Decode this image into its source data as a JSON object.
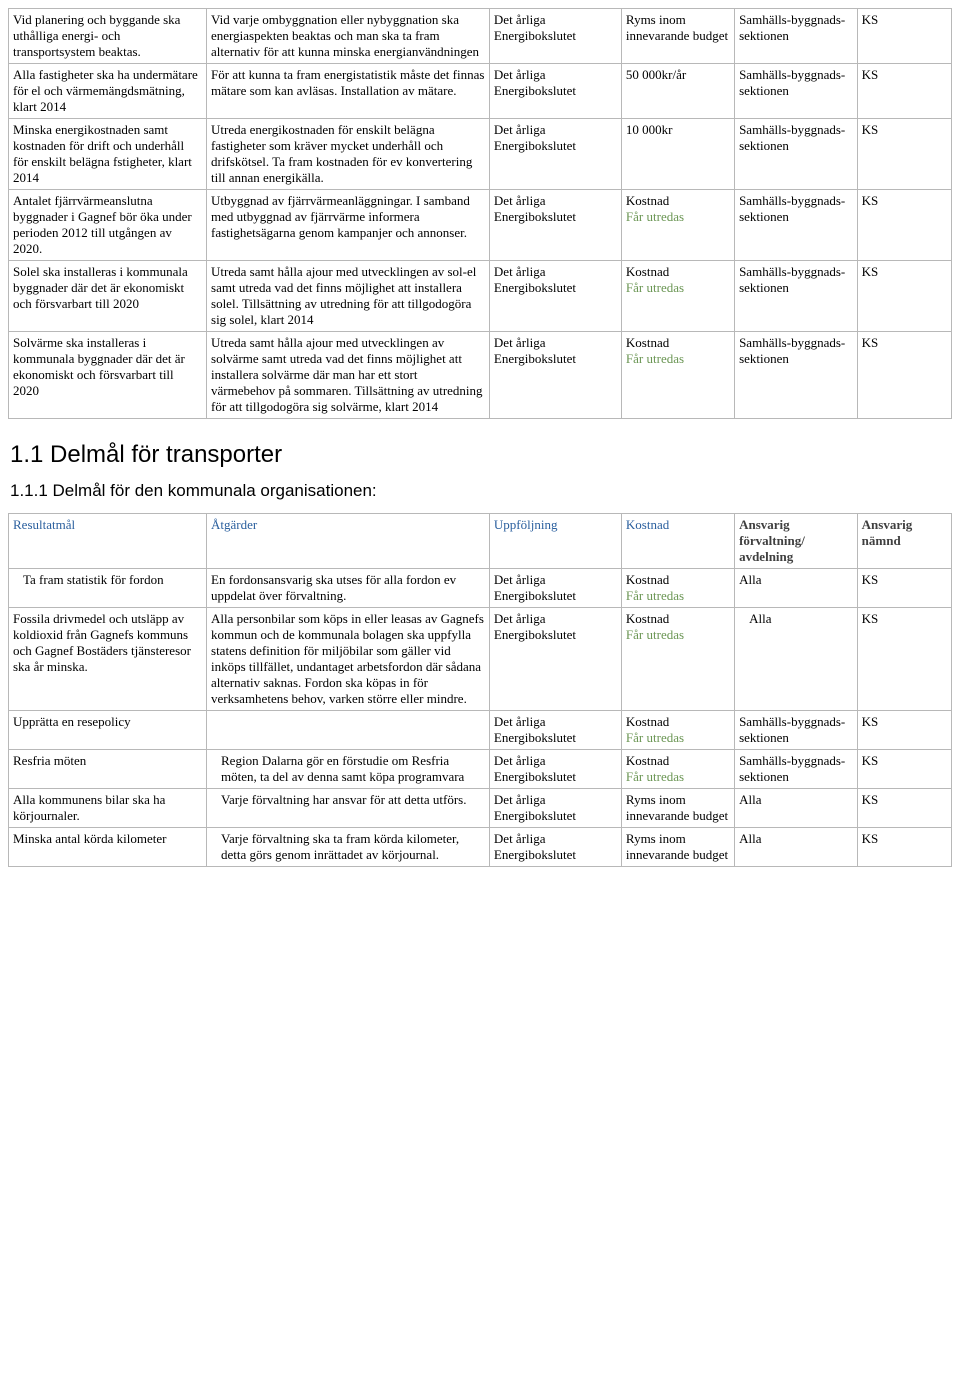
{
  "tables": {
    "energy": {
      "rows": [
        {
          "c1": "Vid planering och byggande ska uthålliga energi- och transportsystem beaktas.",
          "c2": "Vid varje ombyggnation eller nybyggnation ska energiaspekten beaktas och man ska ta fram alternativ för att kunna minska energianvändningen",
          "c3": "Det årliga Energibokslutet",
          "c4": "Ryms inom innevarande budget",
          "c5": "Samhälls-byggnads-sektionen",
          "c6": "KS"
        },
        {
          "c1": "Alla fastigheter ska ha undermätare för el och värmemängdsmätning, klart 2014",
          "c2": "För att kunna ta fram energistatistik måste det finnas mätare som kan avläsas. Installation av mätare.",
          "c3": "Det årliga Energibokslutet",
          "c4": "50 000kr/år",
          "c5": "Samhälls-byggnads-sektionen",
          "c6": "KS"
        },
        {
          "c1": "Minska energikostnaden samt kostnaden för drift och underhåll för enskilt belägna fstigheter, klart 2014",
          "c2": "Utreda energikostnaden för enskilt belägna fastigheter som kräver mycket underhåll och drifskötsel. Ta fram kostnaden för ev konvertering till annan energikälla.",
          "c3": "Det årliga Energibokslutet",
          "c4": "10 000kr",
          "c5": "Samhälls-byggnads-sektionen",
          "c6": "KS"
        },
        {
          "c1": "Antalet fjärrvärmeanslutna byggnader i Gagnef bör öka under perioden 2012 till utgången av 2020.",
          "c2": "Utbyggnad av fjärrvärmeanläggningar. I samband med utbyggnad av fjärrvärme informera fastighetsägarna genom kampanjer och annonser.",
          "c3": "Det årliga Energibokslutet",
          "c4a": "Kostnad",
          "c4b": "Får utredas",
          "c5": "Samhälls-byggnads-sektionen",
          "c6": "KS"
        },
        {
          "c1": "Solel ska installeras i kommunala byggnader där det är ekonomiskt och försvarbart  till  2020",
          "c2": "Utreda samt hålla ajour med utvecklingen av sol-el samt utreda vad det finns möjlighet att installera solel. Tillsättning av utredning för att tillgodogöra sig solel, klart 2014",
          "c3": "Det årliga Energibokslutet",
          "c4a": "Kostnad",
          "c4b": "Får utredas",
          "c5": "Samhälls-byggnads-sektionen",
          "c6": "KS"
        },
        {
          "c1": "Solvärme ska installeras i kommunala byggnader där det är ekonomiskt och försvarbart  till  2020",
          "c2": "Utreda samt hålla ajour med utvecklingen av solvärme samt utreda vad det finns möjlighet att installera solvärme där man har ett stort värmebehov på sommaren. Tillsättning av utredning för att tillgodogöra sig solvärme, klart 2014",
          "c3": "Det årliga Energibokslutet",
          "c4a": "Kostnad",
          "c4b": "Får utredas",
          "c5": "Samhälls-byggnads-sektionen",
          "c6": "KS"
        }
      ]
    },
    "transport": {
      "header": {
        "c1": "Resultatmål",
        "c2": "Åtgärder",
        "c3": "Uppföljning",
        "c4": "Kostnad",
        "c5a": "Ansvarig",
        "c5b": "förvaltning/",
        "c5c": "avdelning",
        "c6a": "Ansvarig",
        "c6b": "nämnd"
      },
      "rows": [
        {
          "c1": "Ta fram statistik för fordon",
          "c2": "En fordonsansvarig ska utses för alla fordon ev uppdelat över förvaltning.",
          "c3": "Det årliga Energibokslutet",
          "c4a": "Kostnad",
          "c4b": "Får utredas",
          "c5": "Alla",
          "c6": "KS",
          "indent": true
        },
        {
          "c1": "Fossila drivmedel och utsläpp av koldioxid från Gagnefs kommuns och Gagnef Bostäders tjänsteresor ska år minska.",
          "c2": "Alla personbilar som köps in eller leasas av Gagnefs kommun och de kommunala bolagen ska uppfylla statens definition för miljöbilar som gäller vid inköps tillfället, undantaget arbetsfordon där sådana alternativ saknas. Fordon ska köpas in för verksamhetens behov, varken större eller mindre.",
          "c3": "Det årliga Energibokslutet",
          "c4a": "Kostnad",
          "c4b": "Får utredas",
          "c5": "Alla",
          "c6": "KS",
          "c5_indent": true
        },
        {
          "c1": "Upprätta en resepolicy",
          "c2": "",
          "c3": "Det årliga Energibokslutet",
          "c4a": "Kostnad",
          "c4b": "Får utredas",
          "c5": "Samhälls-byggnads-sektionen",
          "c6": "KS"
        },
        {
          "c1": "Resfria möten",
          "c2": "Region Dalarna gör en förstudie om Resfria möten, ta del av denna samt köpa programvara",
          "c3": "Det årliga Energibokslutet",
          "c4a": "Kostnad",
          "c4b": "Får utredas",
          "c5": "Samhälls-byggnads-sektionen",
          "c6": "KS",
          "c2_indent": true
        },
        {
          "c1": "Alla kommunens bilar ska ha körjournaler.",
          "c2": "Varje förvaltning har ansvar för att detta utförs.",
          "c3": "Det årliga Energibokslutet",
          "c4": "Ryms inom innevarande budget",
          "c5": "Alla",
          "c6": "KS",
          "c2_indent": true
        },
        {
          "c1": "Minska antal körda kilometer",
          "c2": "Varje förvaltning ska ta fram körda kilometer, detta görs genom inrättadet av körjournal.",
          "c3": "Det årliga Energibokslutet",
          "c4": "Ryms inom innevarande budget",
          "c5": "Alla",
          "c6": "KS",
          "c2_indent": true
        }
      ]
    }
  },
  "headings": {
    "h2": "1.1   Delmål för transporter",
    "h3": "1.1.1   Delmål för den kommunala organisationen:"
  },
  "colors": {
    "border": "#b8b8b8",
    "headerBlue": "#2a5f9e",
    "headerDark": "#404040",
    "subGreen": "#6b9654"
  }
}
